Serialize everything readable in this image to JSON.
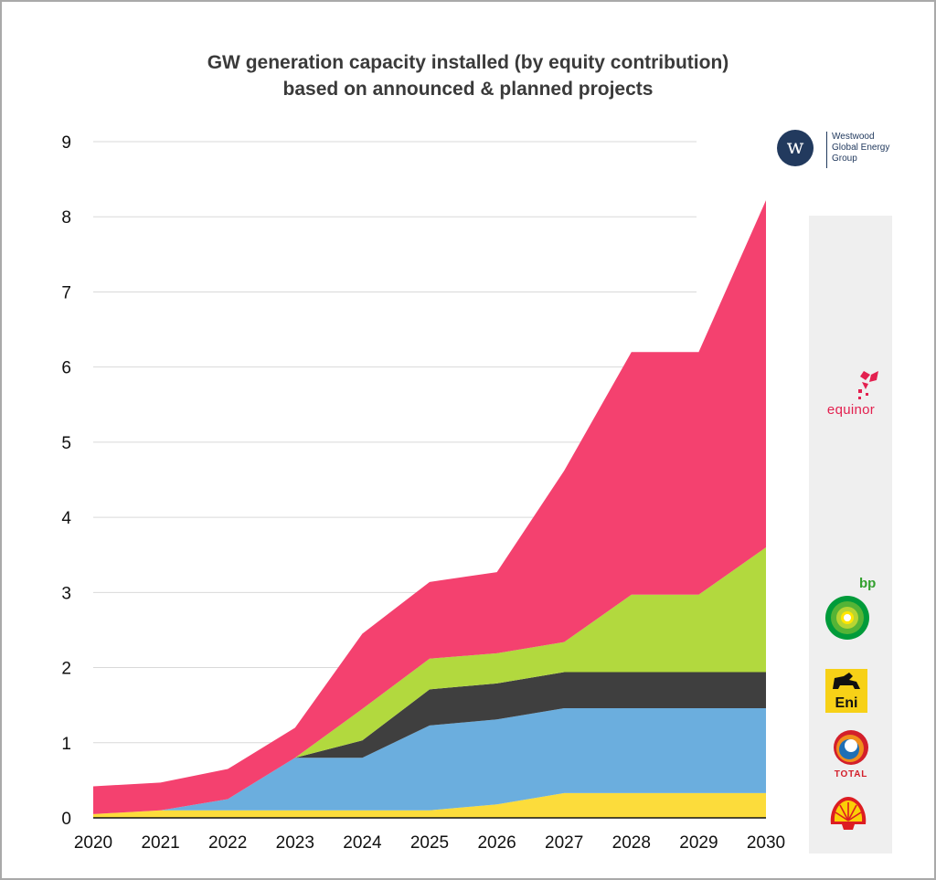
{
  "title": {
    "line1": "GW generation capacity installed (by equity contribution)",
    "line2": "based on announced & planned projects"
  },
  "branding": {
    "org_name": "Westwood\nGlobal Energy\nGroup",
    "org_monogram": "w"
  },
  "legend_logos": {
    "equinor": "equinor",
    "bp": "bp",
    "eni": "Eni",
    "total": "TOTAL"
  },
  "colors": {
    "equinor": "#f4416f",
    "bp": "#b2d93e",
    "eni": "#3f3f3f",
    "total": "#6baede",
    "shell": "#fcdc3b",
    "grid": "#d9d9d9"
  },
  "chart_data": {
    "type": "area",
    "stacked": true,
    "title": "GW generation capacity installed (by equity contribution) based on announced & planned projects",
    "xlabel": "",
    "ylabel": "",
    "x": [
      2020,
      2021,
      2022,
      2023,
      2024,
      2025,
      2026,
      2027,
      2028,
      2029,
      2030
    ],
    "x_tick_labels": [
      "2020",
      "2021",
      "2022",
      "2023",
      "2024",
      "2025",
      "2026",
      "2027",
      "2028",
      "2029",
      "2030"
    ],
    "ylim": [
      0,
      9
    ],
    "y_ticks": [
      0,
      1,
      2,
      3,
      4,
      5,
      6,
      7,
      8,
      9
    ],
    "grid": true,
    "legend": "right (company logos)",
    "series": [
      {
        "name": "Shell",
        "color_key": "shell",
        "values": [
          0.05,
          0.1,
          0.1,
          0.1,
          0.1,
          0.1,
          0.18,
          0.33,
          0.33,
          0.33,
          0.33
        ]
      },
      {
        "name": "Total",
        "color_key": "total",
        "values": [
          0.0,
          0.0,
          0.15,
          0.7,
          0.7,
          1.13,
          1.13,
          1.13,
          1.13,
          1.13,
          1.13
        ]
      },
      {
        "name": "Eni",
        "color_key": "eni",
        "values": [
          0.0,
          0.0,
          0.0,
          0.0,
          0.23,
          0.48,
          0.48,
          0.48,
          0.48,
          0.48,
          0.48
        ]
      },
      {
        "name": "BP",
        "color_key": "bp",
        "values": [
          0.0,
          0.0,
          0.0,
          0.0,
          0.42,
          0.41,
          0.4,
          0.4,
          1.03,
          1.03,
          1.66
        ]
      },
      {
        "name": "Equinor",
        "color_key": "equinor",
        "values": [
          0.37,
          0.37,
          0.4,
          0.4,
          1.0,
          1.02,
          1.08,
          2.28,
          3.23,
          3.23,
          4.62
        ]
      }
    ]
  }
}
